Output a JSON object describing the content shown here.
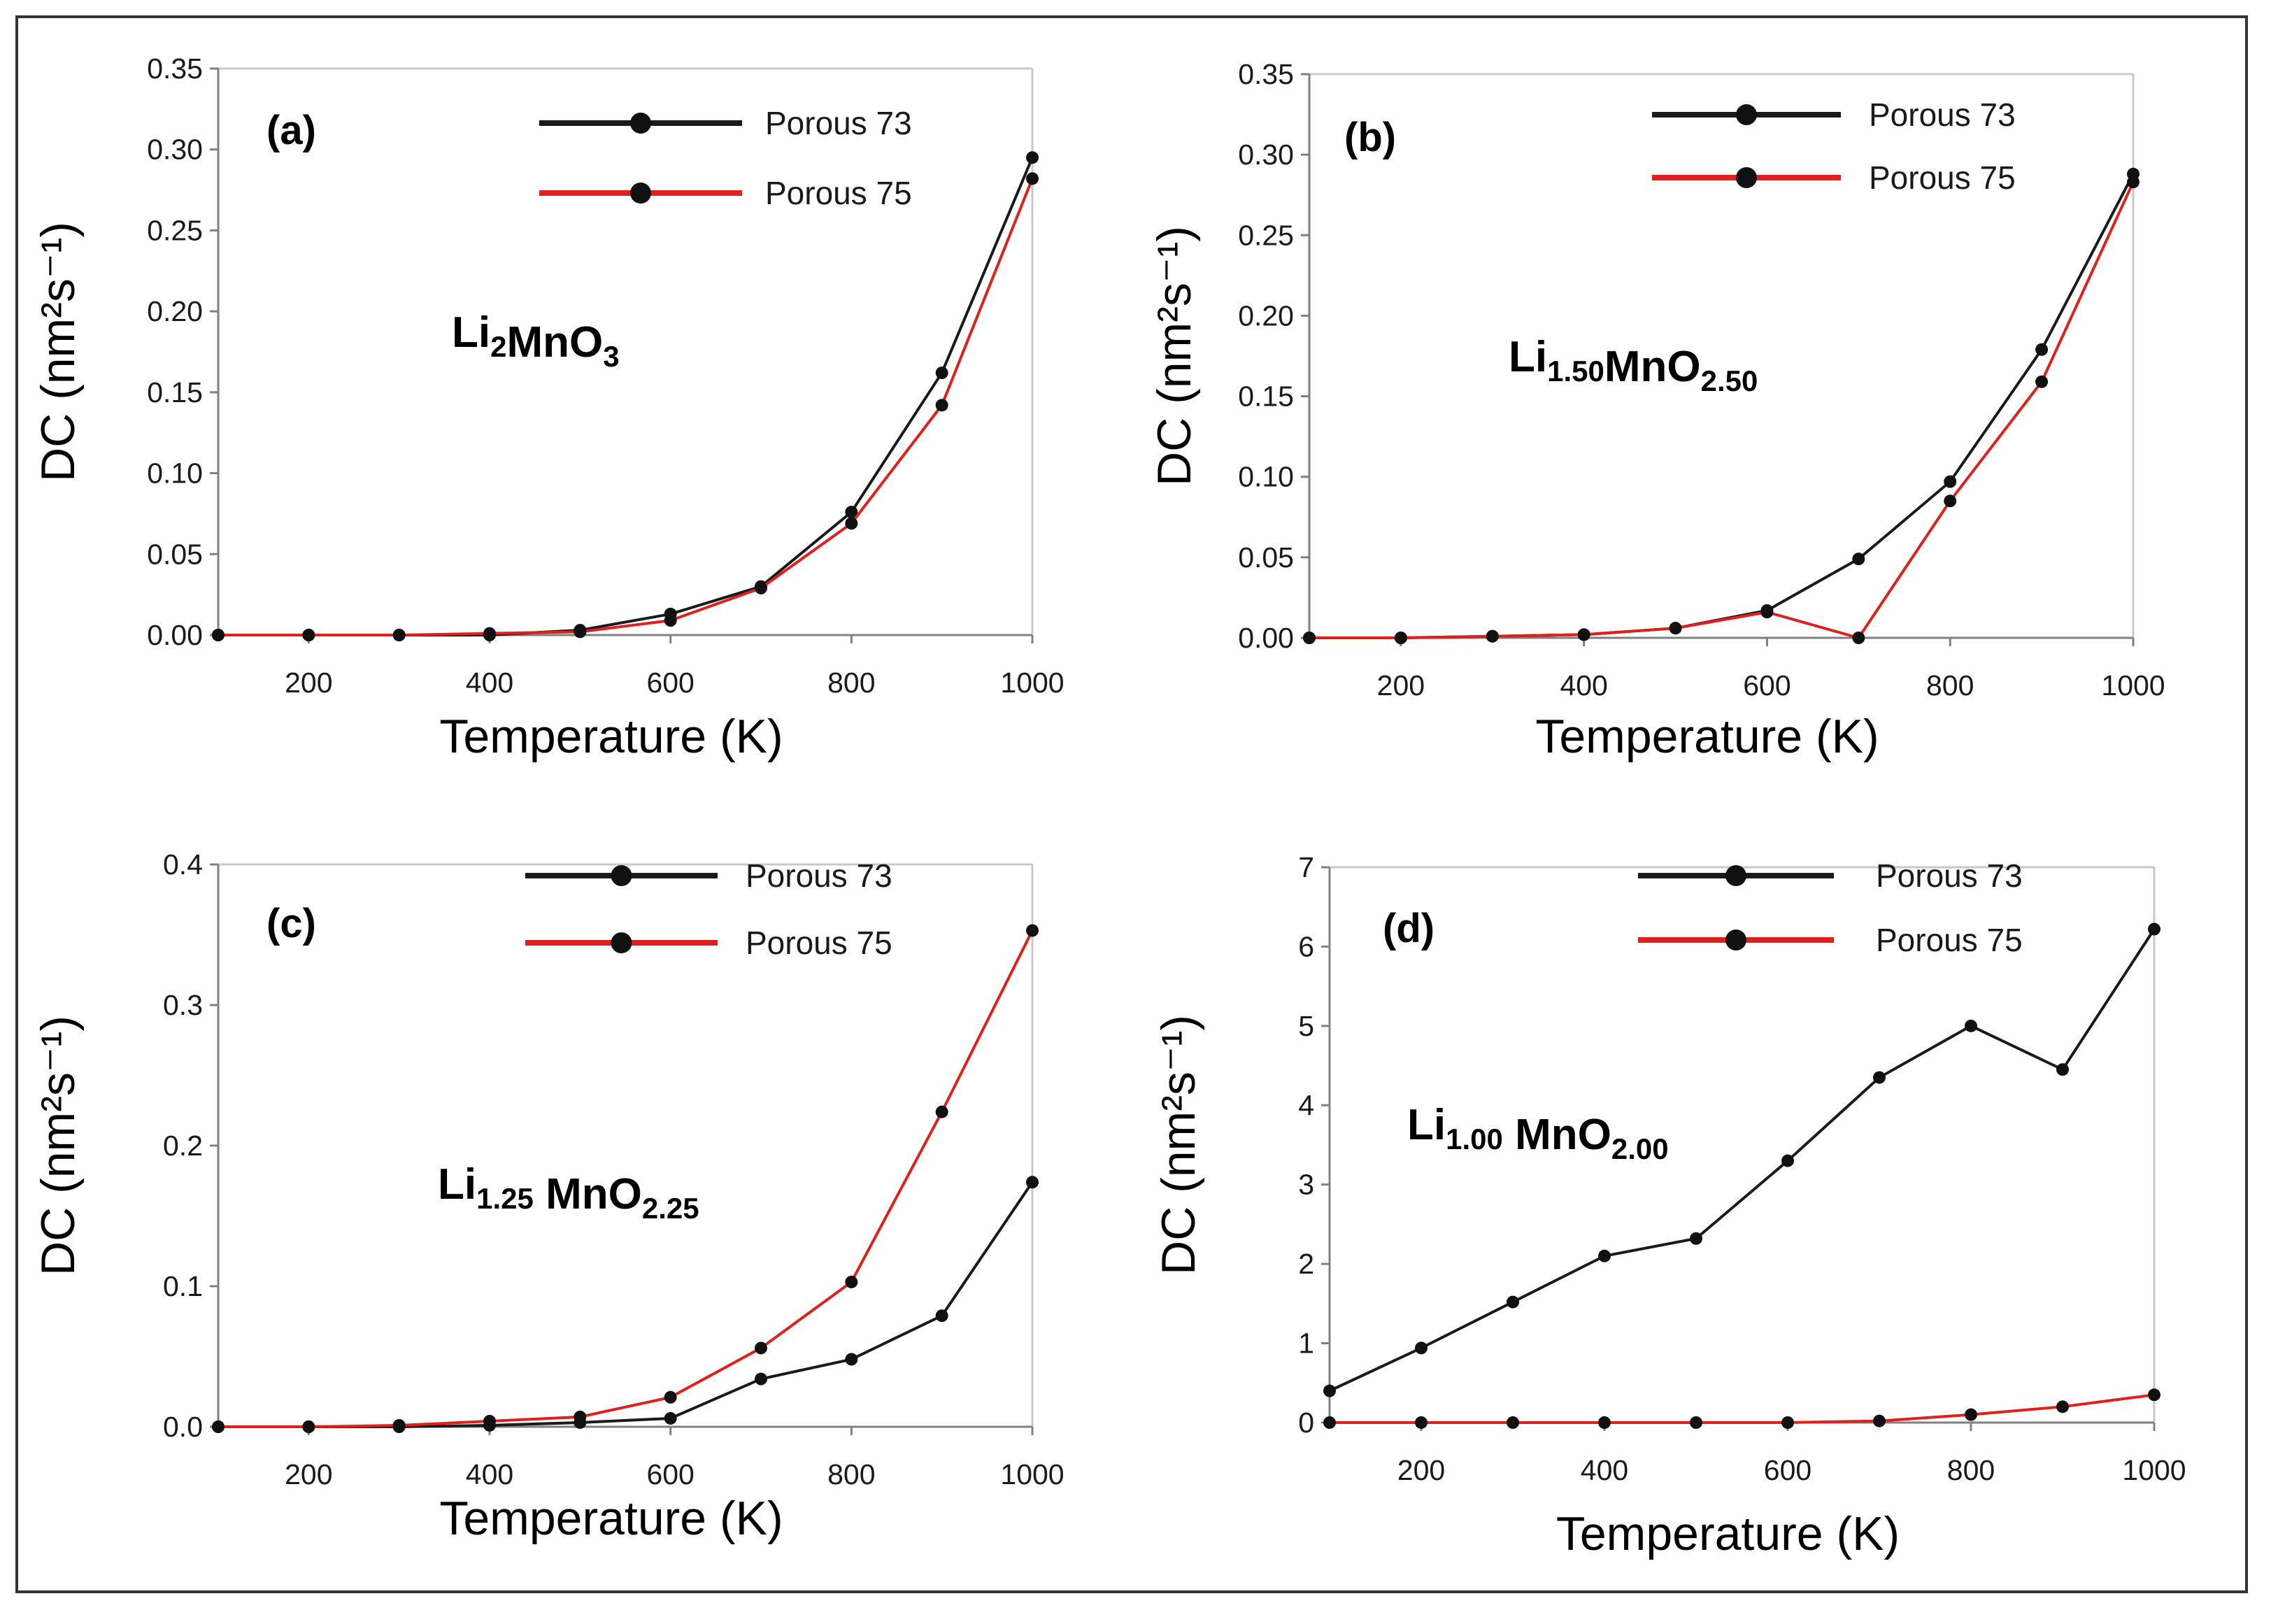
{
  "chart_data": [
    {
      "type": "line",
      "panel_label": "(a)",
      "formula": {
        "parts": [
          {
            "t": "Li",
            "sub": false
          },
          {
            "t": "2",
            "sub": true
          },
          {
            "t": "MnO",
            "sub": false
          },
          {
            "t": "3",
            "sub": true
          }
        ]
      },
      "xlabel": "Temperature  (K)",
      "ylabel": "DC (nm²s⁻¹)",
      "xlim": [
        100,
        1000
      ],
      "ylim": [
        0,
        0.35
      ],
      "xticks": [
        200,
        400,
        600,
        800,
        1000
      ],
      "xtick_labels": [
        "200",
        "400",
        "600",
        "800",
        "1000"
      ],
      "yticks": [
        0,
        0.05,
        0.1,
        0.15,
        0.2,
        0.25,
        0.3,
        0.35
      ],
      "ytick_labels": [
        "0.00",
        "0.05",
        "0.10",
        "0.15",
        "0.20",
        "0.25",
        "0.30",
        "0.35"
      ],
      "x": [
        100,
        200,
        300,
        400,
        500,
        600,
        700,
        800,
        900,
        1000
      ],
      "series": [
        {
          "name": "Porous 73",
          "color": "#1a1a1a",
          "values": [
            0.0,
            0.0,
            0.0,
            0.0,
            0.003,
            0.013,
            0.03,
            0.076,
            0.162,
            0.295
          ]
        },
        {
          "name": "Porous 75",
          "color": "#e0201c",
          "values": [
            0.0,
            0.0,
            0.0,
            0.001,
            0.002,
            0.009,
            0.029,
            0.069,
            0.142,
            0.282
          ]
        }
      ]
    },
    {
      "type": "line",
      "panel_label": "(b)",
      "formula": {
        "parts": [
          {
            "t": "Li",
            "sub": false
          },
          {
            "t": "1.50",
            "sub": true
          },
          {
            "t": "MnO",
            "sub": false
          },
          {
            "t": "2.50",
            "sub": true
          }
        ]
      },
      "xlabel": "Temperature  (K)",
      "ylabel": "DC (nm²s⁻¹)",
      "xlim": [
        100,
        1000
      ],
      "ylim": [
        0,
        0.35
      ],
      "xticks": [
        200,
        400,
        600,
        800,
        1000
      ],
      "xtick_labels": [
        "200",
        "400",
        "600",
        "800",
        "1000"
      ],
      "yticks": [
        0,
        0.05,
        0.1,
        0.15,
        0.2,
        0.25,
        0.3,
        0.35
      ],
      "ytick_labels": [
        "0.00",
        "0.05",
        "0.10",
        "0.15",
        "0.20",
        "0.25",
        "0.30",
        "0.35"
      ],
      "x": [
        100,
        200,
        300,
        400,
        500,
        600,
        700,
        800,
        900,
        1000
      ],
      "series": [
        {
          "name": "Porous 73",
          "color": "#1a1a1a",
          "values": [
            0.0,
            0.0,
            0.001,
            0.002,
            0.006,
            0.017,
            0.049,
            0.097,
            0.179,
            0.288
          ]
        },
        {
          "name": "Porous 75",
          "color": "#e0201c",
          "values": [
            0.0,
            0.0,
            0.001,
            0.002,
            0.006,
            0.016,
            0.0,
            0.085,
            0.159,
            0.283
          ]
        }
      ]
    },
    {
      "type": "line",
      "panel_label": "(c)",
      "formula": {
        "parts": [
          {
            "t": "Li",
            "sub": false
          },
          {
            "t": "1.25",
            "sub": true
          },
          {
            "t": "  MnO",
            "sub": false
          },
          {
            "t": "2.25",
            "sub": true
          }
        ]
      },
      "xlabel": "Temperature  (K)",
      "ylabel": "DC (nm²s⁻¹)",
      "xlim": [
        100,
        1000
      ],
      "ylim": [
        0,
        0.4
      ],
      "xticks": [
        200,
        400,
        600,
        800,
        1000
      ],
      "xtick_labels": [
        "200",
        "400",
        "600",
        "800",
        "1000"
      ],
      "yticks": [
        0,
        0.1,
        0.2,
        0.3,
        0.4
      ],
      "ytick_labels": [
        "0.0",
        "0.1",
        "0.2",
        "0.3",
        "0.4"
      ],
      "x": [
        100,
        200,
        300,
        400,
        500,
        600,
        700,
        800,
        900,
        1000
      ],
      "series": [
        {
          "name": "Porous 73",
          "color": "#1a1a1a",
          "values": [
            0.0,
            0.0,
            0.0,
            0.001,
            0.003,
            0.006,
            0.034,
            0.048,
            0.079,
            0.174
          ]
        },
        {
          "name": "Porous 75",
          "color": "#e0201c",
          "values": [
            0.0,
            0.0,
            0.001,
            0.004,
            0.007,
            0.021,
            0.056,
            0.103,
            0.224,
            0.353
          ]
        }
      ]
    },
    {
      "type": "line",
      "panel_label": "(d)",
      "formula": {
        "parts": [
          {
            "t": "Li",
            "sub": false
          },
          {
            "t": "1.00",
            "sub": true
          },
          {
            "t": "  MnO",
            "sub": false
          },
          {
            "t": "2.00",
            "sub": true
          }
        ]
      },
      "xlabel": "Temperature  (K)",
      "ylabel": "DC (nm²s⁻¹)",
      "xlim": [
        100,
        1000
      ],
      "ylim": [
        0,
        7
      ],
      "xticks": [
        200,
        400,
        600,
        800,
        1000
      ],
      "xtick_labels": [
        "200",
        "400",
        "600",
        "800",
        "1000"
      ],
      "yticks": [
        0,
        1,
        2,
        3,
        4,
        5,
        6,
        7
      ],
      "ytick_labels": [
        "0",
        "1",
        "2",
        "3",
        "4",
        "5",
        "6",
        "7"
      ],
      "x": [
        100,
        200,
        300,
        400,
        500,
        600,
        700,
        800,
        900,
        1000
      ],
      "series": [
        {
          "name": "Porous 73",
          "color": "#1a1a1a",
          "values": [
            0.4,
            0.94,
            1.52,
            2.1,
            2.32,
            3.3,
            4.35,
            5.0,
            4.45,
            6.22
          ]
        },
        {
          "name": "Porous 75",
          "color": "#e0201c",
          "values": [
            0.0,
            0.0,
            0.0,
            0.0,
            0.0,
            0.0,
            0.02,
            0.1,
            0.2,
            0.35
          ]
        }
      ]
    }
  ]
}
